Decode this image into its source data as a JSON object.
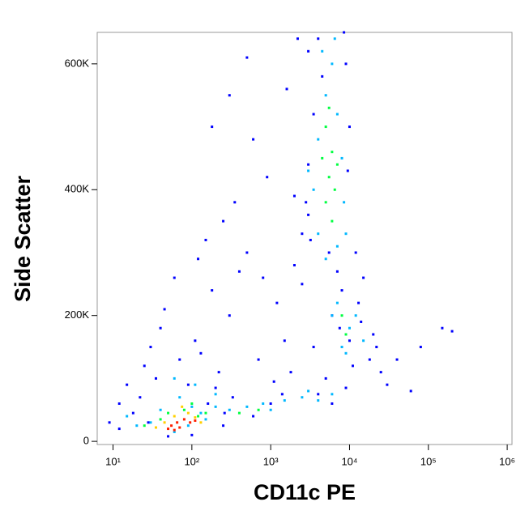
{
  "chart_data": {
    "type": "scatter",
    "x_label": "CD11c PE",
    "y_label": "Side Scatter",
    "xscale": "log",
    "xlim": [
      6.3,
      1150000
    ],
    "xticks": [
      {
        "value": 10,
        "label": "10¹"
      },
      {
        "value": 100,
        "label": "10²"
      },
      {
        "value": 1000,
        "label": "10³"
      },
      {
        "value": 10000,
        "label": "10⁴"
      },
      {
        "value": 100000,
        "label": "10⁵"
      },
      {
        "value": 1000000,
        "label": "10⁶"
      }
    ],
    "ylim": [
      -5000,
      650000
    ],
    "yticks": [
      0,
      {
        "value": 200000,
        "label": "200K"
      },
      {
        "value": 400000,
        "label": "400K"
      },
      {
        "value": 600000,
        "label": "600K"
      }
    ],
    "series": [
      {
        "color": "#0000ff",
        "x": [
          9,
          12,
          15,
          25,
          30,
          35,
          40,
          120,
          150,
          180,
          250,
          300,
          400,
          500,
          600,
          800,
          1200,
          1500,
          2000,
          2500,
          300,
          180,
          60,
          45,
          130,
          220,
          700,
          1100,
          1800,
          3000,
          15000,
          20000,
          25000,
          30000,
          40000,
          60000,
          80000,
          150000,
          200000,
          2200,
          1600,
          900,
          500,
          350,
          2500,
          3500,
          5000,
          8000,
          12000,
          9000,
          4000,
          3000,
          2000,
          7000,
          11000,
          14000,
          18000,
          22000,
          12,
          18,
          22,
          28,
          70,
          90,
          110,
          160,
          200,
          260,
          330,
          1000,
          1400,
          600,
          250,
          100,
          50,
          3200,
          2800,
          6000,
          10000,
          13000,
          3500,
          4500,
          8500,
          10000,
          9500,
          3000,
          5500,
          7500,
          4000,
          6000,
          9000
        ],
        "y": [
          30000,
          60000,
          90000,
          120000,
          150000,
          100000,
          180000,
          290000,
          320000,
          240000,
          350000,
          200000,
          270000,
          300000,
          480000,
          260000,
          220000,
          160000,
          390000,
          330000,
          550000,
          500000,
          260000,
          210000,
          140000,
          110000,
          130000,
          95000,
          110000,
          620000,
          260000,
          170000,
          110000,
          90000,
          130000,
          80000,
          150000,
          180000,
          175000,
          640000,
          560000,
          420000,
          610000,
          380000,
          250000,
          150000,
          100000,
          240000,
          300000,
          600000,
          640000,
          440000,
          280000,
          270000,
          120000,
          190000,
          130000,
          150000,
          20000,
          45000,
          70000,
          30000,
          130000,
          90000,
          160000,
          60000,
          85000,
          45000,
          70000,
          60000,
          75000,
          40000,
          25000,
          10000,
          8000,
          320000,
          380000,
          200000,
          160000,
          220000,
          520000,
          580000,
          650000,
          500000,
          430000,
          360000,
          300000,
          180000,
          75000,
          60000,
          85000
        ]
      },
      {
        "color": "#00b8ff",
        "x": [
          40,
          30,
          70,
          100,
          130,
          150,
          200,
          300,
          500,
          800,
          1500,
          2500,
          4000,
          6000,
          15,
          20,
          60,
          90,
          4000,
          3500,
          4000,
          5000,
          6000,
          7000,
          8000,
          8500,
          7000,
          5000,
          4500,
          6500,
          6000,
          8000,
          10000,
          12000,
          9000,
          15000,
          7000,
          3000,
          9000,
          110,
          200,
          60,
          3000,
          1000
        ],
        "y": [
          50000,
          30000,
          70000,
          55000,
          45000,
          35000,
          55000,
          50000,
          55000,
          60000,
          65000,
          70000,
          65000,
          75000,
          40000,
          25000,
          15000,
          25000,
          330000,
          400000,
          480000,
          550000,
          600000,
          520000,
          450000,
          380000,
          310000,
          290000,
          620000,
          640000,
          200000,
          150000,
          180000,
          200000,
          140000,
          160000,
          220000,
          430000,
          330000,
          90000,
          75000,
          100000,
          80000,
          50000
        ]
      },
      {
        "color": "#00ff40",
        "x": [
          5000,
          5500,
          6000,
          5000,
          6500,
          4500,
          6000,
          7000,
          5500,
          50,
          80,
          120,
          40,
          100,
          150,
          25,
          400,
          700,
          8000,
          9000
        ],
        "y": [
          380000,
          420000,
          460000,
          500000,
          400000,
          450000,
          350000,
          440000,
          530000,
          45000,
          50000,
          40000,
          35000,
          60000,
          45000,
          25000,
          45000,
          50000,
          200000,
          170000
        ]
      },
      {
        "color": "#ffd000",
        "x": [
          60,
          90,
          110,
          45,
          130,
          75,
          35
        ],
        "y": [
          40000,
          45000,
          38000,
          30000,
          30000,
          55000,
          22000
        ]
      },
      {
        "color": "#ff2000",
        "x": [
          55,
          65,
          80,
          50,
          70,
          95,
          110,
          60
        ],
        "y": [
          25000,
          30000,
          35000,
          20000,
          22000,
          30000,
          33000,
          18000
        ]
      }
    ]
  }
}
